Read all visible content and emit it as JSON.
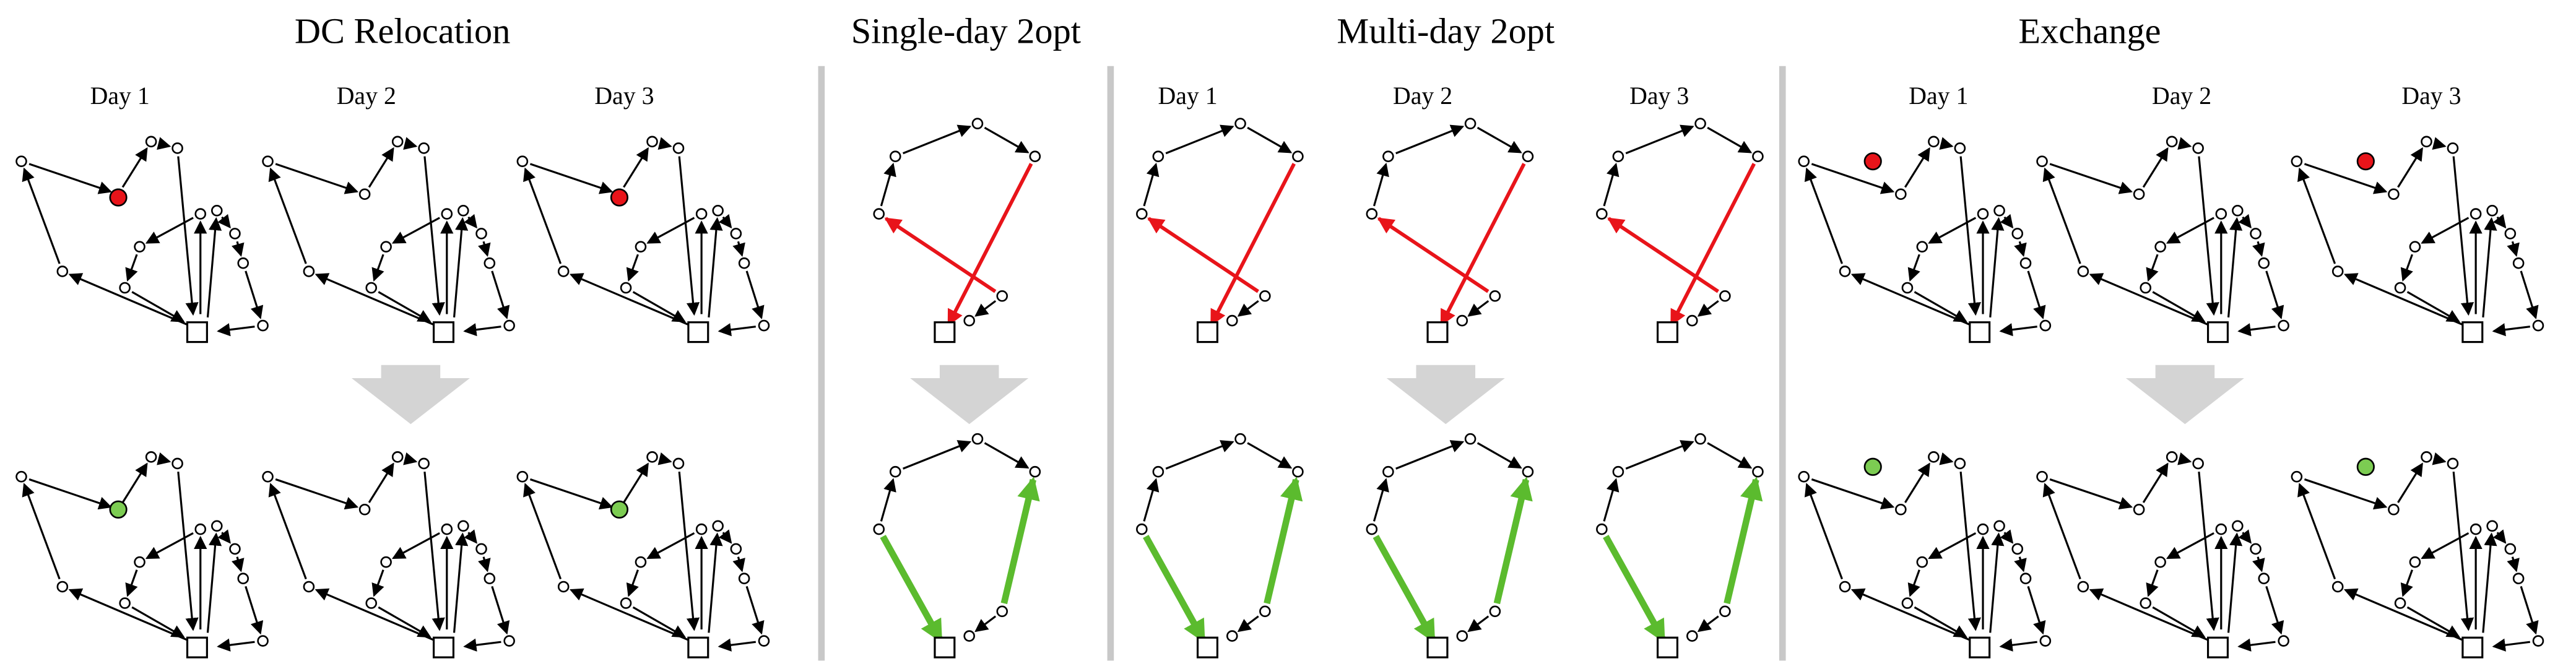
{
  "sections": [
    {
      "title": "DC Relocation",
      "days": [
        "Day 1",
        "Day 2",
        "Day 3"
      ]
    },
    {
      "title": "Single-day 2opt"
    },
    {
      "title": "Multi-day 2opt",
      "days": [
        "Day 1",
        "Day 2",
        "Day 3"
      ]
    },
    {
      "title": "Exchange",
      "days": [
        "Day 1",
        "Day 2",
        "Day 3"
      ]
    }
  ]
}
